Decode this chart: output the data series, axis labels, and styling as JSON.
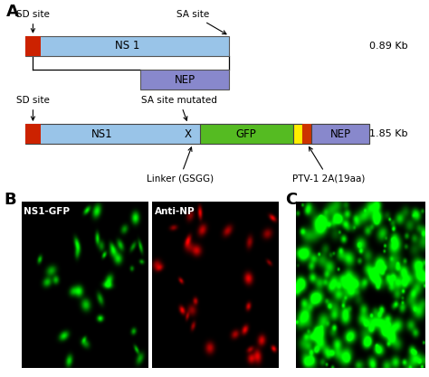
{
  "background_color": "#ffffff",
  "panel_A_label": "A",
  "panel_B_label": "B",
  "panel_C_label": "C",
  "top_diagram": {
    "sd_site_label": "SD site",
    "sa_site_label": "SA site",
    "ns1_label": "NS 1",
    "nep_label": "NEP",
    "size_label": "0.89 Kb"
  },
  "bottom_diagram": {
    "sd_site_label": "SD site",
    "sa_site_mutated_label": "SA site mutated",
    "ns1_label": "NS1",
    "x_label": "X",
    "gfp_label": "GFP",
    "nep_label": "NEP",
    "linker_label": "Linker (GSGG)",
    "ptv_label": "PTV-1 2A(19aa)",
    "size_label": "1.85 Kb"
  },
  "image_B_NS1_title": "NS1-GFP",
  "image_B_AntiNP_title": "Anti-NP",
  "fig_width": 4.74,
  "fig_height": 4.17,
  "dpi": 100
}
